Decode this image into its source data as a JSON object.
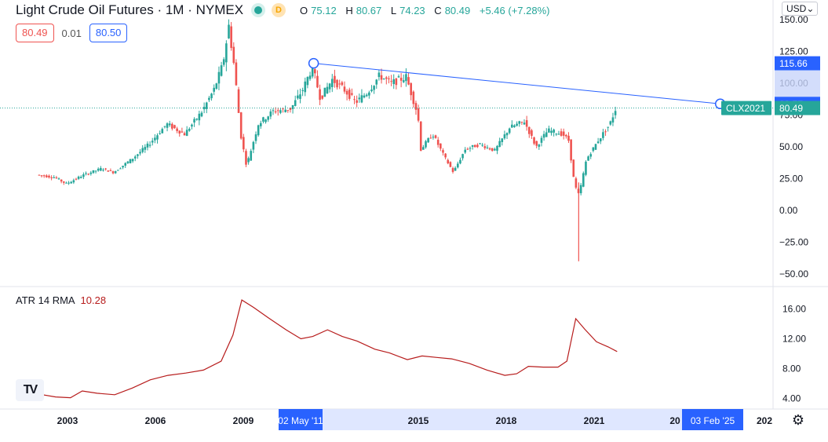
{
  "header": {
    "title": "Light Crude Oil Futures · 1M · NYMEX",
    "badge": "D",
    "ohlc": {
      "o_label": "O",
      "o_value": "75.12",
      "h_label": "H",
      "h_value": "80.67",
      "l_label": "L",
      "l_value": "74.23",
      "c_label": "C",
      "c_value": "80.49",
      "change": "+5.46 (+7.28%)"
    }
  },
  "quote": {
    "bid": "80.49",
    "spread": "0.01",
    "ask": "80.50"
  },
  "currency": "USD⌄",
  "indicator": {
    "name": "ATR 14 RMA",
    "value": "10.28"
  },
  "logo": "TV",
  "settings_icon": "⚙",
  "colors": {
    "up": "#26a69a",
    "down": "#ef5350",
    "trend": "#2962ff",
    "atr": "#b71c1c",
    "price_line": "#26a69a"
  },
  "chart_data": [
    {
      "type": "candlestick",
      "x_ticks": [
        "2003",
        "2006",
        "2009",
        "2015",
        "2018",
        "2021",
        "20",
        "202"
      ],
      "y_ticks": [
        "150.00",
        "125.00",
        "100.00",
        "75.00",
        "50.00",
        "25.00",
        "0.00",
        "−25.00",
        "−50.00"
      ],
      "ylim": [
        -55,
        152
      ],
      "price_path": [
        [
          2002.0,
          28
        ],
        [
          2002.6,
          26
        ],
        [
          2003.0,
          21
        ],
        [
          2003.6,
          28
        ],
        [
          2004.2,
          33
        ],
        [
          2004.6,
          30
        ],
        [
          2005.2,
          40
        ],
        [
          2005.8,
          52
        ],
        [
          2006.4,
          68
        ],
        [
          2007.0,
          60
        ],
        [
          2007.6,
          78
        ],
        [
          2008.0,
          95
        ],
        [
          2008.3,
          115
        ],
        [
          2008.5,
          145
        ],
        [
          2008.7,
          110
        ],
        [
          2008.9,
          60
        ],
        [
          2009.1,
          35
        ],
        [
          2009.5,
          68
        ],
        [
          2010.0,
          78
        ],
        [
          2010.6,
          80
        ],
        [
          2011.0,
          95
        ],
        [
          2011.33,
          113
        ],
        [
          2011.6,
          88
        ],
        [
          2012.0,
          103
        ],
        [
          2012.4,
          95
        ],
        [
          2012.8,
          85
        ],
        [
          2013.2,
          93
        ],
        [
          2013.6,
          106
        ],
        [
          2014.0,
          100
        ],
        [
          2014.5,
          105
        ],
        [
          2014.9,
          75
        ],
        [
          2015.0,
          48
        ],
        [
          2015.4,
          60
        ],
        [
          2015.8,
          42
        ],
        [
          2016.1,
          30
        ],
        [
          2016.5,
          48
        ],
        [
          2017.0,
          52
        ],
        [
          2017.5,
          47
        ],
        [
          2018.0,
          65
        ],
        [
          2018.5,
          70
        ],
        [
          2018.9,
          50
        ],
        [
          2019.3,
          63
        ],
        [
          2019.8,
          60
        ],
        [
          2020.0,
          55
        ],
        [
          2020.2,
          20
        ],
        [
          2020.35,
          12
        ],
        [
          2020.6,
          40
        ],
        [
          2021.0,
          55
        ],
        [
          2021.4,
          68
        ],
        [
          2021.6,
          80.49
        ]
      ],
      "wick_spike": {
        "x": 2020.3,
        "low": -40,
        "high": 22
      },
      "trendline": {
        "start": {
          "x": "02 May '11",
          "y": 115.66
        },
        "end": {
          "x": "03 Feb '25",
          "y": 83.77
        }
      },
      "labels": {
        "trend_start_price": "115.66",
        "trend_end_price": "83.77",
        "symbol_tag": "CLX2021",
        "last_price": "80.49",
        "range_start_date": "02 May '11",
        "range_end_date": "03 Feb '25"
      }
    },
    {
      "type": "line",
      "name": "ATR 14 RMA",
      "y_ticks": [
        "16.00",
        "12.00",
        "8.00",
        "4.00"
      ],
      "ylim": [
        3.5,
        17.8
      ],
      "points": [
        [
          2002.0,
          4.6
        ],
        [
          2002.6,
          4.2
        ],
        [
          2003.1,
          4.1
        ],
        [
          2003.5,
          5.0
        ],
        [
          2004.0,
          4.7
        ],
        [
          2004.6,
          4.5
        ],
        [
          2005.2,
          5.4
        ],
        [
          2005.8,
          6.5
        ],
        [
          2006.4,
          7.1
        ],
        [
          2007.0,
          7.4
        ],
        [
          2007.6,
          7.8
        ],
        [
          2008.2,
          9.0
        ],
        [
          2008.6,
          12.5
        ],
        [
          2008.9,
          17.2
        ],
        [
          2009.3,
          16.2
        ],
        [
          2009.8,
          14.8
        ],
        [
          2010.4,
          13.2
        ],
        [
          2010.9,
          12.0
        ],
        [
          2011.3,
          12.3
        ],
        [
          2011.8,
          13.2
        ],
        [
          2012.3,
          12.3
        ],
        [
          2012.8,
          11.7
        ],
        [
          2013.4,
          10.6
        ],
        [
          2013.9,
          10.1
        ],
        [
          2014.5,
          9.2
        ],
        [
          2015.0,
          9.7
        ],
        [
          2015.5,
          9.5
        ],
        [
          2016.0,
          9.3
        ],
        [
          2016.6,
          8.7
        ],
        [
          2017.2,
          7.8
        ],
        [
          2017.8,
          7.1
        ],
        [
          2018.2,
          7.3
        ],
        [
          2018.6,
          8.3
        ],
        [
          2019.1,
          8.2
        ],
        [
          2019.6,
          8.2
        ],
        [
          2019.9,
          9.0
        ],
        [
          2020.2,
          14.7
        ],
        [
          2020.5,
          13.3
        ],
        [
          2020.9,
          11.6
        ],
        [
          2021.3,
          10.9
        ],
        [
          2021.6,
          10.28
        ]
      ]
    }
  ]
}
